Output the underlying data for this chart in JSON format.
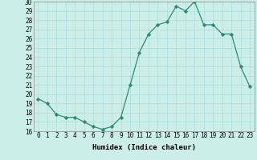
{
  "x": [
    0,
    1,
    2,
    3,
    4,
    5,
    6,
    7,
    8,
    9,
    10,
    11,
    12,
    13,
    14,
    15,
    16,
    17,
    18,
    19,
    20,
    21,
    22,
    23
  ],
  "y": [
    19.5,
    19.0,
    17.8,
    17.5,
    17.5,
    17.0,
    16.5,
    16.2,
    16.5,
    17.5,
    21.0,
    24.5,
    26.5,
    27.5,
    27.8,
    29.5,
    29.0,
    30.0,
    27.5,
    27.5,
    26.5,
    26.5,
    23.0,
    20.8
  ],
  "title": "",
  "xlabel": "Humidex (Indice chaleur)",
  "ylabel": "",
  "xlim": [
    -0.5,
    23.5
  ],
  "ylim": [
    16,
    30
  ],
  "yticks": [
    16,
    17,
    18,
    19,
    20,
    21,
    22,
    23,
    24,
    25,
    26,
    27,
    28,
    29,
    30
  ],
  "xticks": [
    0,
    1,
    2,
    3,
    4,
    5,
    6,
    7,
    8,
    9,
    10,
    11,
    12,
    13,
    14,
    15,
    16,
    17,
    18,
    19,
    20,
    21,
    22,
    23
  ],
  "line_color": "#2d8b72",
  "marker_color": "#2d8b72",
  "bg_color": "#cceee8",
  "grid_color": "#aadddd",
  "label_fontsize": 6.5,
  "tick_fontsize": 5.5
}
